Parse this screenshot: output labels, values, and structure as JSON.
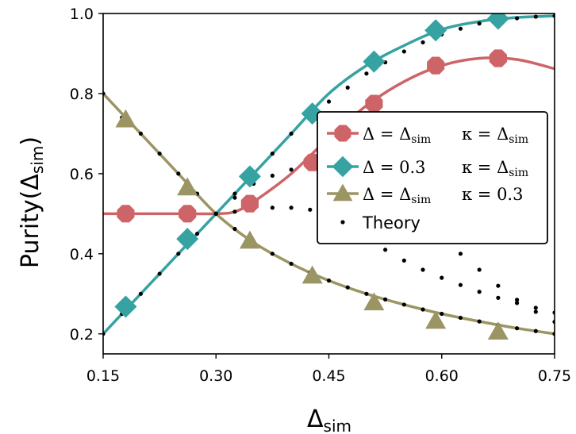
{
  "chart_data": {
    "type": "line",
    "title": "",
    "xlabel": "Δsim",
    "ylabel": "Purity(Δsim)",
    "xlim": [
      0.15,
      0.75
    ],
    "ylim": [
      0.15,
      1.0
    ],
    "x_ticks": [
      "0.15",
      "0.30",
      "0.45",
      "0.60",
      "0.75"
    ],
    "x_tick_values": [
      0.15,
      0.3,
      0.45,
      0.6,
      0.75
    ],
    "y_ticks": [
      "0.2",
      "0.4",
      "0.6",
      "0.8",
      "1.0"
    ],
    "y_tick_values": [
      0.2,
      0.4,
      0.6,
      0.8,
      1.0
    ],
    "legend_position": "center-right",
    "series": [
      {
        "name": "Δ = Δsim   κ = Δsim",
        "legend_parts": [
          "Δ = Δsim",
          "κ = Δsim"
        ],
        "color": "#cd6467",
        "marker": "octagon",
        "x": [
          0.15,
          0.2,
          0.25,
          0.3,
          0.325,
          0.35,
          0.4,
          0.45,
          0.5,
          0.55,
          0.6,
          0.65,
          0.7,
          0.75
        ],
        "y": [
          0.5,
          0.5,
          0.5,
          0.5,
          0.505,
          0.53,
          0.6,
          0.69,
          0.77,
          0.83,
          0.87,
          0.888,
          0.885,
          0.862
        ],
        "marker_x": [
          0.18,
          0.262,
          0.345,
          0.428,
          0.51,
          0.592,
          0.675
        ],
        "marker_y": [
          0.5,
          0.5,
          0.525,
          0.628,
          0.775,
          0.87,
          0.888
        ]
      },
      {
        "name": "Δ = 0.3   κ = Δsim",
        "legend_parts": [
          "Δ = 0.3",
          "κ = Δsim"
        ],
        "color": "#36a2a2",
        "marker": "diamond",
        "x": [
          0.15,
          0.2,
          0.25,
          0.3,
          0.35,
          0.4,
          0.45,
          0.5,
          0.55,
          0.6,
          0.65,
          0.7,
          0.75
        ],
        "y": [
          0.2,
          0.3,
          0.4,
          0.5,
          0.6,
          0.7,
          0.8,
          0.87,
          0.92,
          0.96,
          0.98,
          0.99,
          0.994
        ],
        "marker_x": [
          0.18,
          0.262,
          0.345,
          0.428,
          0.51,
          0.592,
          0.675
        ],
        "marker_y": [
          0.268,
          0.437,
          0.593,
          0.75,
          0.88,
          0.958,
          0.987
        ]
      },
      {
        "name": "Δ = Δsim   κ = 0.3",
        "legend_parts": [
          "Δ = Δsim",
          "κ = 0.3"
        ],
        "color": "#9b9563",
        "marker": "triangle",
        "x": [
          0.15,
          0.2,
          0.25,
          0.3,
          0.35,
          0.4,
          0.45,
          0.5,
          0.55,
          0.6,
          0.65,
          0.7,
          0.75
        ],
        "y": [
          0.8,
          0.7,
          0.6,
          0.5,
          0.428,
          0.375,
          0.333,
          0.3,
          0.273,
          0.25,
          0.231,
          0.214,
          0.2
        ],
        "marker_x": [
          0.18,
          0.262,
          0.345,
          0.428,
          0.51,
          0.592,
          0.675
        ],
        "marker_y": [
          0.735,
          0.565,
          0.432,
          0.345,
          0.278,
          0.232,
          0.205
        ]
      },
      {
        "name": "Theory",
        "color": "#000000",
        "marker": "dot",
        "curves": [
          {
            "x": [
              0.15,
              0.175,
              0.2,
              0.225,
              0.25,
              0.275,
              0.3,
              0.325,
              0.35,
              0.375,
              0.4,
              0.425,
              0.45,
              0.475,
              0.5,
              0.525,
              0.55,
              0.575,
              0.6,
              0.625,
              0.65,
              0.675,
              0.7,
              0.725,
              0.75
            ],
            "y": [
              0.2,
              0.25,
              0.3,
              0.35,
              0.4,
              0.45,
              0.5,
              0.55,
              0.6,
              0.65,
              0.7,
              0.74,
              0.78,
              0.815,
              0.85,
              0.878,
              0.905,
              0.928,
              0.948,
              0.962,
              0.975,
              0.983,
              0.988,
              0.992,
              0.994
            ]
          },
          {
            "x": [
              0.15,
              0.175,
              0.2,
              0.225,
              0.25,
              0.275,
              0.3,
              0.325,
              0.35,
              0.375,
              0.4,
              0.425,
              0.45,
              0.475,
              0.5,
              0.525,
              0.55,
              0.575,
              0.6,
              0.625,
              0.65,
              0.675,
              0.7,
              0.725,
              0.75
            ],
            "y": [
              0.8,
              0.74,
              0.7,
              0.65,
              0.6,
              0.55,
              0.5,
              0.462,
              0.428,
              0.4,
              0.375,
              0.353,
              0.333,
              0.316,
              0.3,
              0.286,
              0.273,
              0.261,
              0.25,
              0.24,
              0.231,
              0.222,
              0.214,
              0.207,
              0.2
            ]
          },
          {
            "x": [
              0.3,
              0.325,
              0.35,
              0.375,
              0.4,
              0.425,
              0.45,
              0.475,
              0.5,
              0.525,
              0.55,
              0.575,
              0.6,
              0.625,
              0.65,
              0.675,
              0.7,
              0.725,
              0.75
            ],
            "y": [
              0.5,
              0.54,
              0.575,
              0.595,
              0.61,
              0.62,
              0.612,
              0.6,
              0.58,
              0.55,
              0.515,
              0.48,
              0.44,
              0.4,
              0.36,
              0.32,
              0.285,
              0.255,
              0.23
            ]
          },
          {
            "x": [
              0.3,
              0.325,
              0.35,
              0.375,
              0.4,
              0.425,
              0.45,
              0.475,
              0.5,
              0.525,
              0.55,
              0.575,
              0.6,
              0.625,
              0.65,
              0.675,
              0.7,
              0.725,
              0.75
            ],
            "y": [
              0.5,
              0.505,
              0.512,
              0.515,
              0.515,
              0.51,
              0.495,
              0.47,
              0.44,
              0.41,
              0.383,
              0.36,
              0.34,
              0.322,
              0.305,
              0.29,
              0.277,
              0.265,
              0.253
            ]
          }
        ]
      }
    ]
  }
}
